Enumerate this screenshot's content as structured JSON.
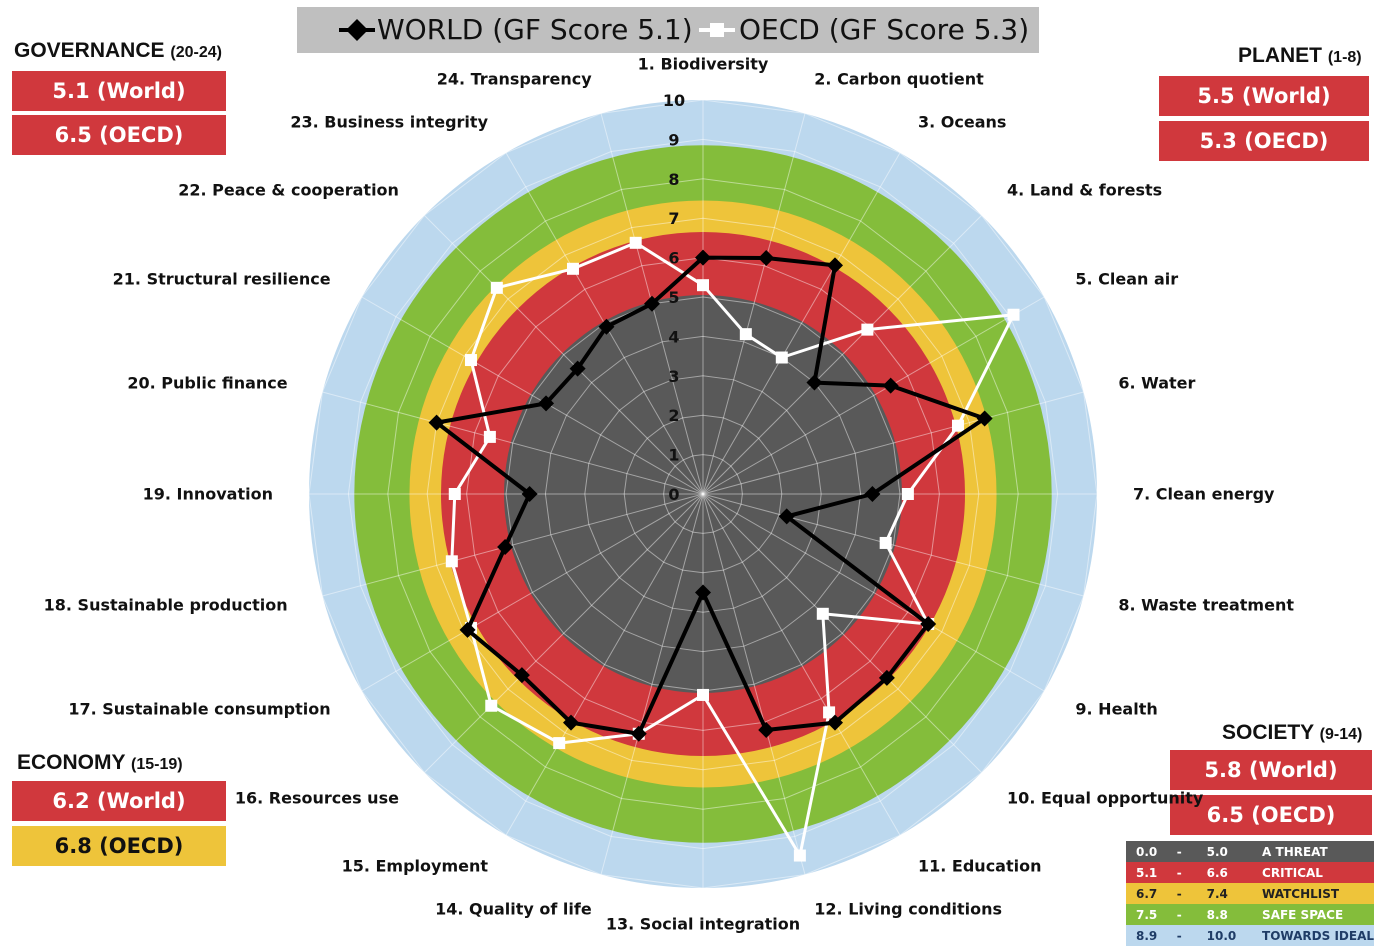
{
  "chart_data": {
    "type": "radar",
    "r_ticks": [
      "0",
      "1",
      "2",
      "3",
      "4",
      "5",
      "6",
      "7",
      "8",
      "9",
      "10"
    ],
    "rlim": [
      0,
      10
    ],
    "axes": [
      "1. Biodiversity",
      "2. Carbon quotient",
      "3. Oceans",
      "4. Land & forests",
      "5. Clean air",
      "6. Water",
      "7. Clean energy",
      "8. Waste treatment",
      "9. Health",
      "10. Equal opportunity",
      "11. Education",
      "12. Living conditions",
      "13. Social integration",
      "14. Quality of life",
      "15. Employment",
      "16. Resources use",
      "17. Sustainable consumption",
      "18. Sustainable production",
      "19. Innovation",
      "20. Public finance",
      "21. Structural resilience",
      "22. Peace & cooperation",
      "23. Business integrity",
      "24. Transparency"
    ],
    "series": [
      {
        "name": "WORLD (GF Score 5.1)",
        "color": "#000000",
        "values": [
          6.0,
          6.2,
          6.7,
          4.0,
          5.5,
          7.4,
          4.3,
          2.2,
          6.6,
          6.6,
          6.7,
          6.2,
          2.5,
          6.3,
          6.7,
          6.5,
          6.9,
          5.2,
          4.4,
          7.0,
          4.6,
          4.5,
          4.9,
          5.0
        ]
      },
      {
        "name": "OECD (GF Score 5.3)",
        "color": "#ffffff",
        "values": [
          5.3,
          4.2,
          4.0,
          5.9,
          9.1,
          6.7,
          5.2,
          4.8,
          6.6,
          4.3,
          6.4,
          9.5,
          5.1,
          6.3,
          7.3,
          7.6,
          6.8,
          6.6,
          6.3,
          5.6,
          6.8,
          7.4,
          6.6,
          6.6
        ]
      }
    ],
    "bands": [
      {
        "from": 0.0,
        "to": 5.0,
        "label": "A THREAT",
        "color": "#595959"
      },
      {
        "from": 5.1,
        "to": 6.6,
        "label": "CRITICAL",
        "color": "#d0383d"
      },
      {
        "from": 6.7,
        "to": 7.4,
        "label": "WATCHLIST",
        "color": "#eec43a"
      },
      {
        "from": 7.5,
        "to": 8.8,
        "label": "SAFE SPACE",
        "color": "#84bd3b"
      },
      {
        "from": 8.9,
        "to": 10.0,
        "label": "TOWARDS IDEAL",
        "color": "#bcd8ee"
      }
    ]
  },
  "legend": {
    "world": "WORLD (GF Score 5.1)",
    "oecd": "OECD (GF Score 5.3)"
  },
  "sections": {
    "governance": {
      "title": "GOVERNANCE",
      "range": "(20-24)",
      "world": "5.1 (World)",
      "oecd": "6.5 (OECD)",
      "world_color": "#d0383d",
      "oecd_color": "#d0383d"
    },
    "planet": {
      "title": "PLANET",
      "range": "(1-8)",
      "world": "5.5 (World)",
      "oecd": "5.3 (OECD)",
      "world_color": "#d0383d",
      "oecd_color": "#d0383d"
    },
    "economy": {
      "title": "ECONOMY",
      "range": "(15-19)",
      "world": "6.2 (World)",
      "oecd": "6.8 (OECD)",
      "world_color": "#d0383d",
      "oecd_color": "#eec43a"
    },
    "society": {
      "title": "SOCIETY",
      "range": "(9-14)",
      "world": "5.8 (World)",
      "oecd": "6.5 (OECD)",
      "world_color": "#d0383d",
      "oecd_color": "#d0383d"
    }
  },
  "scale": [
    {
      "from": "0.0",
      "sep": "-",
      "to": "5.0",
      "label": "A THREAT",
      "color": "#595959"
    },
    {
      "from": "5.1",
      "sep": "-",
      "to": "6.6",
      "label": "CRITICAL",
      "color": "#d0383d"
    },
    {
      "from": "6.7",
      "sep": "-",
      "to": "7.4",
      "label": "WATCHLIST",
      "color": "#eec43a"
    },
    {
      "from": "7.5",
      "sep": "-",
      "to": "8.8",
      "label": "SAFE SPACE",
      "color": "#84bd3b"
    },
    {
      "from": "8.9",
      "sep": "-",
      "to": "10.0",
      "label": "TOWARDS IDEAL",
      "color": "#bcd8ee"
    }
  ]
}
